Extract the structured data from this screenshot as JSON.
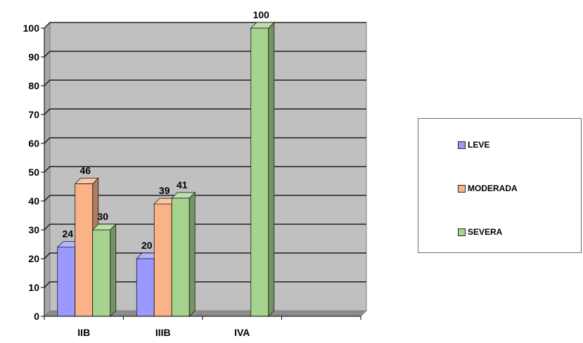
{
  "chart_data": {
    "type": "bar",
    "title": "",
    "xlabel": "",
    "ylabel": "",
    "categories": [
      "IIB",
      "IIIB",
      "IVA",
      ""
    ],
    "series": [
      {
        "name": "LEVE",
        "values": [
          24,
          20,
          null,
          null
        ],
        "color": "#9999FF"
      },
      {
        "name": "MODERADA",
        "values": [
          46,
          39,
          null,
          null
        ],
        "color": "#FAB387"
      },
      {
        "name": "SEVERA",
        "values": [
          30,
          41,
          100,
          null
        ],
        "color": "#A6D48F"
      }
    ],
    "ylim": [
      0,
      100
    ],
    "yticks": [
      "0",
      "10",
      "20",
      "30",
      "40",
      "50",
      "60",
      "70",
      "80",
      "90",
      "100"
    ],
    "data_labels": true,
    "grid": true,
    "background": "#C0C0C0",
    "legend_position": "right"
  }
}
